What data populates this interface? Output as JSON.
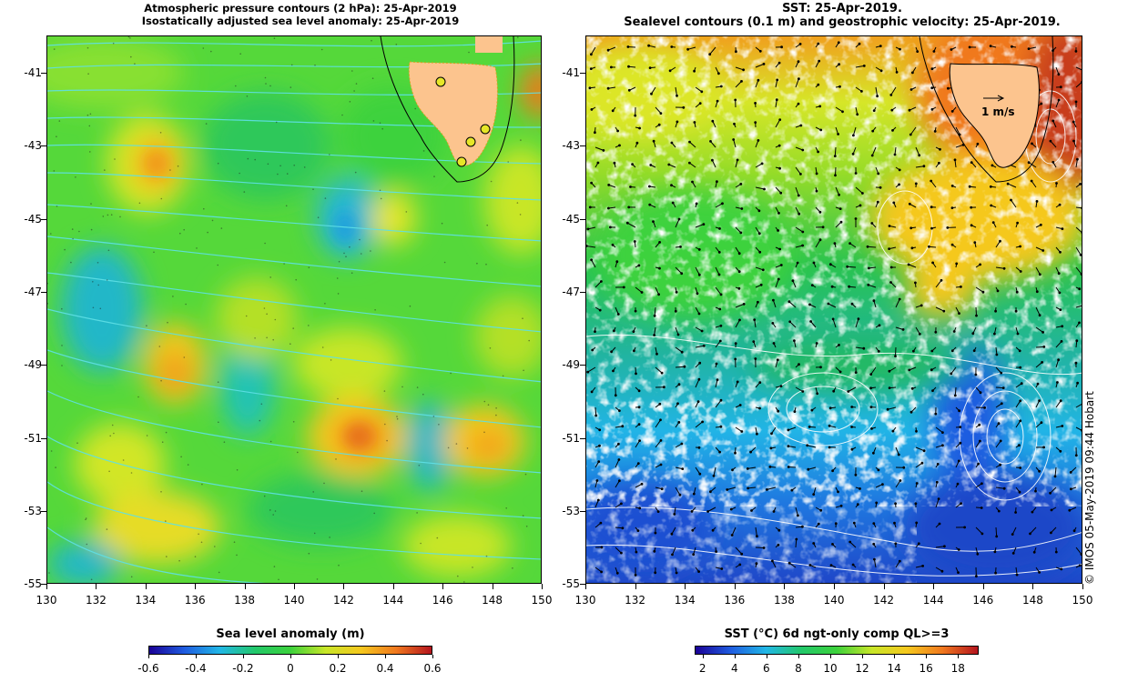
{
  "left_panel": {
    "title_line1": "Atmospheric pressure contours (2 hPa): 25-Apr-2019",
    "title_line2": "Isostatically adjusted sea level anomaly: 25-Apr-2019",
    "colorbar_title": "Sea level anomaly (m)",
    "colorbar_ticks": [
      "-0.6",
      "-0.4",
      "-0.2",
      "0",
      "0.2",
      "0.4",
      "0.6"
    ]
  },
  "right_panel": {
    "title_line1": "SST: 25-Apr-2019.",
    "title_line2": "Sealevel contours (0.1 m) and geostrophic velocity: 25-Apr-2019.",
    "velocity_scale_label": "1 m/s",
    "colorbar_title": "SST (°C) 6d ngt-only comp QL>=3",
    "colorbar_ticks": [
      "2",
      "4",
      "6",
      "8",
      "10",
      "12",
      "14",
      "16",
      "18"
    ]
  },
  "axes": {
    "lat_ticks": [
      "-41",
      "-43",
      "-45",
      "-47",
      "-49",
      "-51",
      "-53",
      "-55"
    ],
    "lon_ticks": [
      "130",
      "132",
      "134",
      "136",
      "138",
      "140",
      "142",
      "144",
      "146",
      "148",
      "150"
    ]
  },
  "credit": "© IMOS 05-May-2019 09:44 Hobart",
  "colors": {
    "sla_scale": [
      "#1a0096",
      "#1f5ce0",
      "#21b7e6",
      "#22c86a",
      "#3cd23c",
      "#c8e628",
      "#f5c81e",
      "#f0781e",
      "#b4141e"
    ],
    "sst_scale": [
      "#1a0096",
      "#1f5ce0",
      "#21b7e6",
      "#22c86a",
      "#3cd23c",
      "#c8e628",
      "#f5c81e",
      "#f0781e",
      "#b4141e"
    ],
    "land": "#fcc48e",
    "sla_background": "#4fdc3c",
    "sst_clouds": "#ffffff"
  }
}
